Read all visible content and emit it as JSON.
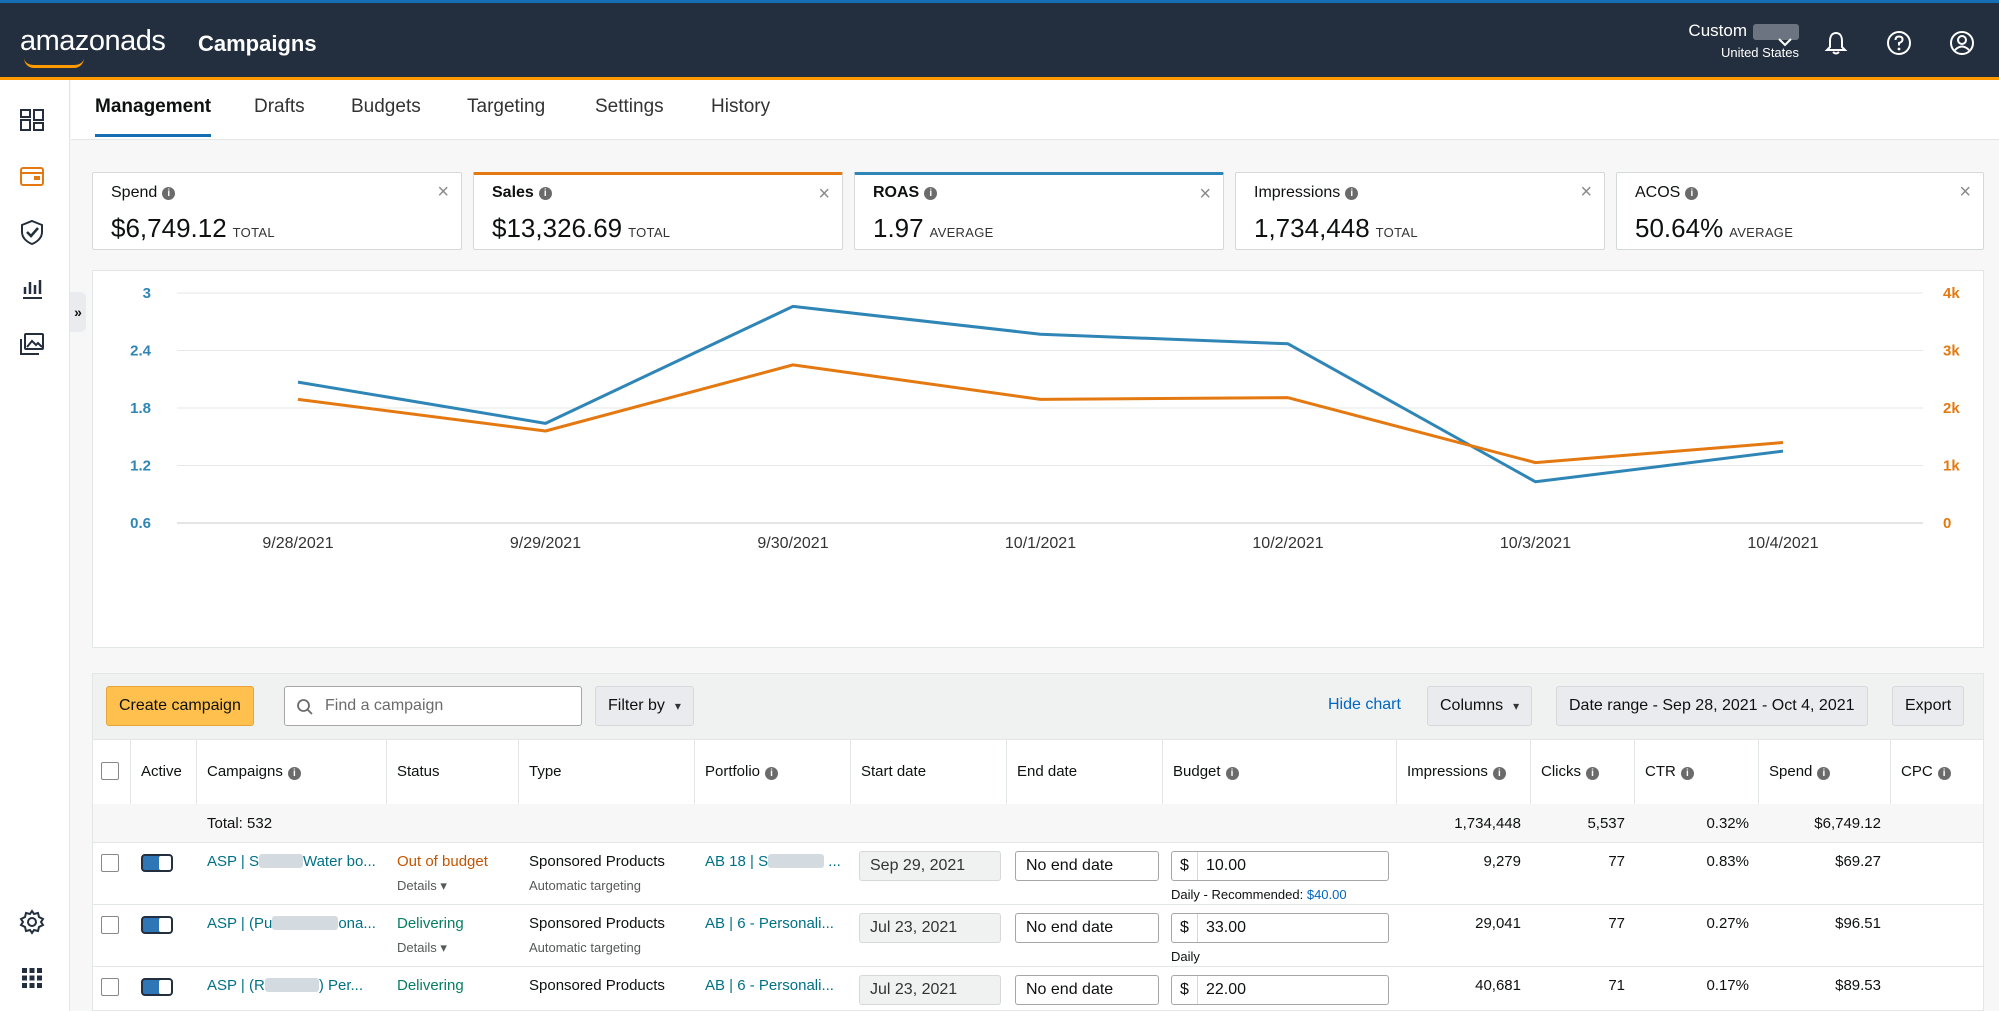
{
  "header": {
    "logo": "amazonads",
    "app_title": "Campaigns",
    "account_name": "Custom",
    "account_country": "United States"
  },
  "tabs": [
    "Management",
    "Drafts",
    "Budgets",
    "Targeting",
    "Settings",
    "History"
  ],
  "metrics": [
    {
      "label": "Spend",
      "value": "$6,749.12",
      "sub": "TOTAL"
    },
    {
      "label": "Sales",
      "value": "$13,326.69",
      "sub": "TOTAL"
    },
    {
      "label": "ROAS",
      "value": "1.97",
      "sub": "AVERAGE"
    },
    {
      "label": "Impressions",
      "value": "1,734,448",
      "sub": "TOTAL"
    },
    {
      "label": "ACOS",
      "value": "50.64%",
      "sub": "AVERAGE"
    }
  ],
  "chart_data": {
    "type": "line",
    "x": [
      "9/28/2021",
      "9/29/2021",
      "9/30/2021",
      "10/1/2021",
      "10/2/2021",
      "10/3/2021",
      "10/4/2021"
    ],
    "y_left": {
      "ticks": [
        "3",
        "2.4",
        "1.8",
        "1.2",
        "0.6"
      ],
      "min": 0.6,
      "max": 3
    },
    "y_right": {
      "ticks": [
        "4k",
        "3k",
        "2k",
        "1k",
        "0"
      ],
      "min": 0,
      "max": 4000
    },
    "series": [
      {
        "name": "ROAS",
        "axis": "left",
        "color": "#2f86b6",
        "values": [
          2.07,
          1.64,
          2.86,
          2.57,
          2.47,
          1.03,
          1.35
        ]
      },
      {
        "name": "Sales",
        "axis": "right",
        "color": "#e47911",
        "values": [
          2150,
          1600,
          2750,
          2150,
          2180,
          1050,
          1400
        ]
      }
    ]
  },
  "toolbar": {
    "create_label": "Create campaign",
    "search_placeholder": "Find a campaign",
    "filter_label": "Filter by",
    "hide_chart_label": "Hide chart",
    "columns_label": "Columns",
    "date_range_label": "Date range - Sep 28, 2021 - Oct 4, 2021",
    "export_label": "Export"
  },
  "table": {
    "headers": {
      "active": "Active",
      "campaigns": "Campaigns",
      "status": "Status",
      "type": "Type",
      "portfolio": "Portfolio",
      "start_date": "Start date",
      "end_date": "End date",
      "budget": "Budget",
      "impressions": "Impressions",
      "clicks": "Clicks",
      "ctr": "CTR",
      "spend": "Spend",
      "cpc": "CPC"
    },
    "totals": {
      "label": "Total: 532",
      "impressions": "1,734,448",
      "clicks": "5,537",
      "ctr": "0.32%",
      "spend": "$6,749.12"
    },
    "rows": [
      {
        "campaign_a": "ASP | S",
        "campaign_b": "Water bo...",
        "status": "Out of budget",
        "details": "Details",
        "type": "Sponsored Products",
        "targeting": "Automatic targeting",
        "portfolio": "AB 18 | S",
        "start": "Sep 29, 2021",
        "end": "No end date",
        "currency": "$",
        "budget": "10.00",
        "budget_note": "Daily - Recommended:",
        "budget_reco": "$40.00",
        "impressions": "9,279",
        "clicks": "77",
        "ctr": "0.83%",
        "spend": "$69.27"
      },
      {
        "campaign_a": "ASP | (Pu",
        "campaign_b": "ona...",
        "status": "Delivering",
        "details": "Details",
        "type": "Sponsored Products",
        "targeting": "Automatic targeting",
        "portfolio": "AB | 6 - Personali...",
        "start": "Jul 23, 2021",
        "end": "No end date",
        "currency": "$",
        "budget": "33.00",
        "budget_note": "Daily",
        "impressions": "29,041",
        "clicks": "77",
        "ctr": "0.27%",
        "spend": "$96.51"
      },
      {
        "campaign_a": "ASP | (R",
        "campaign_b": ") Per...",
        "status": "Delivering",
        "type": "Sponsored Products",
        "portfolio": "AB | 6 - Personali...",
        "start": "Jul 23, 2021",
        "end": "No end date",
        "currency": "$",
        "budget": "22.00",
        "impressions": "40,681",
        "clicks": "71",
        "ctr": "0.17%",
        "spend": "$89.53"
      }
    ]
  }
}
